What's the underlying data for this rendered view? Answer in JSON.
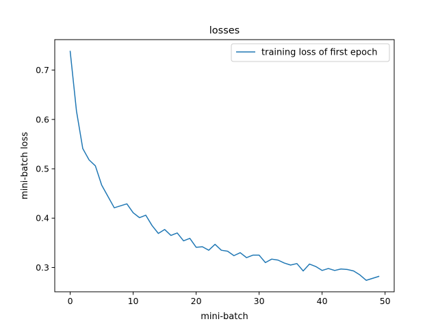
{
  "chart_data": {
    "type": "line",
    "title": "losses",
    "xlabel": "mini-batch",
    "ylabel": "mini-batch loss",
    "xlim": [
      -2.45,
      51.45
    ],
    "ylim": [
      0.2508,
      0.7617
    ],
    "xticks": [
      0,
      10,
      20,
      30,
      40,
      50
    ],
    "yticks": [
      0.3,
      0.4,
      0.5,
      0.6,
      0.7
    ],
    "xtick_labels": [
      "0",
      "10",
      "20",
      "30",
      "40",
      "50"
    ],
    "ytick_labels": [
      "0.3",
      "0.4",
      "0.5",
      "0.6",
      "0.7"
    ],
    "grid": false,
    "legend_position": "top-right",
    "series": [
      {
        "name": "training loss of first epoch",
        "color": "#1f77b4",
        "x": [
          0,
          1,
          2,
          3,
          4,
          5,
          6,
          7,
          8,
          9,
          10,
          11,
          12,
          13,
          14,
          15,
          16,
          17,
          18,
          19,
          20,
          21,
          22,
          23,
          24,
          25,
          26,
          27,
          28,
          29,
          30,
          31,
          32,
          33,
          34,
          35,
          36,
          37,
          38,
          39,
          40,
          41,
          42,
          43,
          44,
          45,
          46,
          47,
          48,
          49
        ],
        "values": [
          0.738,
          0.617,
          0.541,
          0.518,
          0.506,
          0.467,
          0.444,
          0.421,
          0.425,
          0.429,
          0.411,
          0.401,
          0.406,
          0.385,
          0.369,
          0.377,
          0.365,
          0.37,
          0.354,
          0.359,
          0.341,
          0.342,
          0.335,
          0.347,
          0.335,
          0.333,
          0.324,
          0.33,
          0.32,
          0.325,
          0.325,
          0.31,
          0.317,
          0.315,
          0.309,
          0.305,
          0.308,
          0.293,
          0.307,
          0.302,
          0.294,
          0.298,
          0.294,
          0.297,
          0.296,
          0.293,
          0.285,
          0.274,
          0.278,
          0.282
        ]
      }
    ]
  }
}
